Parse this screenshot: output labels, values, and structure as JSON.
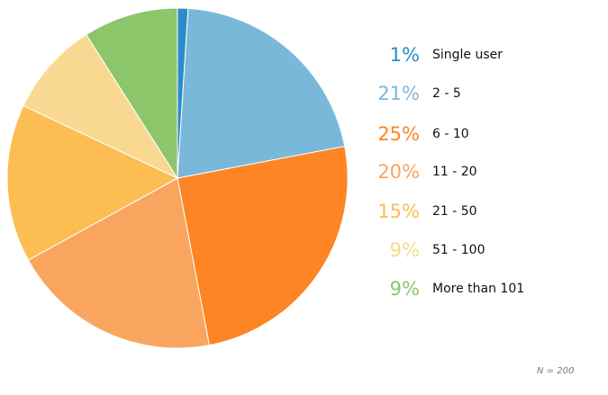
{
  "chart_data": {
    "type": "pie",
    "categories": [
      "Single user",
      "2 - 5",
      "6 - 10",
      "11 - 20",
      "21 - 50",
      "51 - 100",
      "More than 101"
    ],
    "values": [
      1,
      21,
      25,
      20,
      15,
      9,
      9
    ],
    "value_labels": [
      "1%",
      "21%",
      "25%",
      "20%",
      "15%",
      "9%",
      "9%"
    ],
    "colors": [
      "#2a8cc8",
      "#7ab8da",
      "#fd8523",
      "#f9a55f",
      "#fcbd52",
      "#f9d891",
      "#8cc56a"
    ],
    "start_angle": "top, clockwise",
    "legend_position": "right",
    "note": "N = 200"
  }
}
